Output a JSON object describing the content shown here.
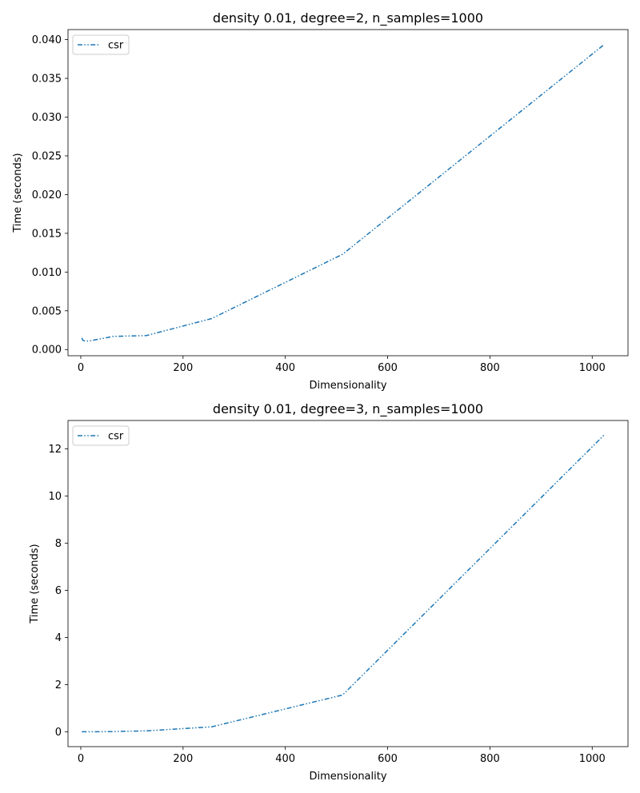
{
  "chart_data": [
    {
      "type": "line",
      "title": "density 0.01, degree=2, n_samples=1000",
      "xlabel": "Dimensionality",
      "ylabel": "Time (seconds)",
      "xlim": [
        -25,
        1070
      ],
      "ylim": [
        -0.0008,
        0.0413
      ],
      "x_ticks": [
        0,
        200,
        400,
        600,
        800,
        1000
      ],
      "x_tick_labels": [
        "0",
        "200",
        "400",
        "600",
        "800",
        "1000"
      ],
      "y_ticks": [
        0.0,
        0.005,
        0.01,
        0.015,
        0.02,
        0.025,
        0.03,
        0.035,
        0.04
      ],
      "y_tick_labels": [
        "0.000",
        "0.005",
        "0.010",
        "0.015",
        "0.020",
        "0.025",
        "0.030",
        "0.035",
        "0.040"
      ],
      "legend_position": "top-left",
      "series": [
        {
          "name": "csr",
          "color": "#1f77b4",
          "line_style": "dash-dot-dot",
          "x": [
            2,
            4,
            8,
            16,
            32,
            64,
            128,
            256,
            512,
            1024
          ],
          "y": [
            0.0015,
            0.0012,
            0.0011,
            0.0011,
            0.0013,
            0.0017,
            0.0018,
            0.004,
            0.0123,
            0.0394
          ]
        }
      ]
    },
    {
      "type": "line",
      "title": "density 0.01, degree=3, n_samples=1000",
      "xlabel": "Dimensionality",
      "ylabel": "Time (seconds)",
      "xlim": [
        -25,
        1070
      ],
      "ylim": [
        -0.63,
        13.2
      ],
      "x_ticks": [
        0,
        200,
        400,
        600,
        800,
        1000
      ],
      "x_tick_labels": [
        "0",
        "200",
        "400",
        "600",
        "800",
        "1000"
      ],
      "y_ticks": [
        0,
        2,
        4,
        6,
        8,
        10,
        12
      ],
      "y_tick_labels": [
        "0",
        "2",
        "4",
        "6",
        "8",
        "10",
        "12"
      ],
      "legend_position": "top-left",
      "series": [
        {
          "name": "csr",
          "color": "#1f77b4",
          "line_style": "dash-dot-dot",
          "x": [
            2,
            4,
            8,
            16,
            32,
            64,
            128,
            256,
            512,
            1024
          ],
          "y": [
            0.0,
            0.0,
            0.0,
            0.0,
            0.0,
            0.01,
            0.04,
            0.21,
            1.56,
            12.6
          ]
        }
      ]
    }
  ]
}
